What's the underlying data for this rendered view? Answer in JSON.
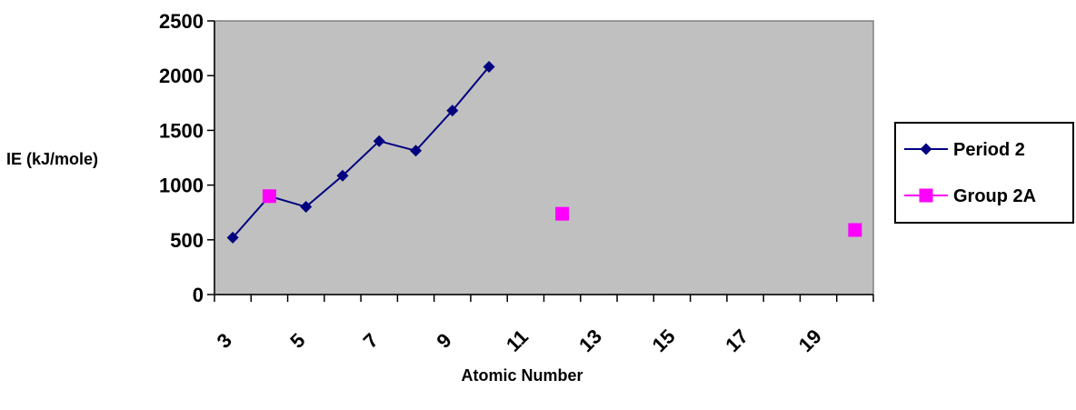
{
  "chart_data": {
    "type": "line",
    "title": "",
    "xlabel": "Atomic Number",
    "ylabel": "IE (kJ/mole)",
    "xlim": [
      3,
      21
    ],
    "ylim": [
      0,
      2500
    ],
    "x_ticks": [
      "3",
      "5",
      "7",
      "9",
      "11",
      "13",
      "15",
      "17",
      "19"
    ],
    "y_ticks": [
      "0",
      "500",
      "1000",
      "1500",
      "2000",
      "2500"
    ],
    "grid": false,
    "plot_background": "#c0c0c0",
    "legend_position": "right",
    "series": [
      {
        "name": "Period 2",
        "color": "#000080",
        "marker": "diamond",
        "line": true,
        "x": [
          3,
          4,
          5,
          6,
          7,
          8,
          9,
          10
        ],
        "y": [
          520,
          899,
          801,
          1086,
          1402,
          1314,
          1681,
          2081
        ]
      },
      {
        "name": "Group 2A",
        "color": "#ff00ff",
        "marker": "square",
        "line": false,
        "x": [
          4,
          12,
          20
        ],
        "y": [
          899,
          738,
          590
        ]
      }
    ]
  }
}
